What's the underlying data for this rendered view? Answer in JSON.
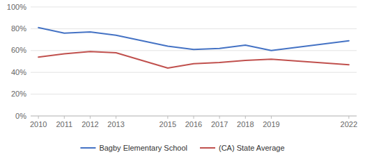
{
  "chart_data": {
    "type": "line",
    "x": [
      2010,
      2011,
      2012,
      2013,
      2015,
      2016,
      2017,
      2018,
      2019,
      2022
    ],
    "series": [
      {
        "name": "Bagby Elementary School",
        "color": "#4472C4",
        "values": [
          0.81,
          0.76,
          0.77,
          0.74,
          0.64,
          0.61,
          0.62,
          0.65,
          0.6,
          0.69
        ]
      },
      {
        "name": "(CA) State Average",
        "color": "#C0504D",
        "values": [
          0.54,
          0.57,
          0.59,
          0.58,
          0.44,
          0.48,
          0.49,
          0.51,
          0.52,
          0.47
        ]
      }
    ],
    "xlim": [
      2009.7,
      2022.3
    ],
    "xticks": [
      2010,
      2011,
      2012,
      2013,
      2015,
      2016,
      2017,
      2018,
      2019,
      2022
    ],
    "ylim": [
      0.0,
      1.0
    ],
    "yticks": [
      {
        "value": 0.0,
        "label": "0%"
      },
      {
        "value": 0.2,
        "label": "20%"
      },
      {
        "value": 0.4,
        "label": "40%"
      },
      {
        "value": 0.6,
        "label": "60%"
      },
      {
        "value": 0.8,
        "label": "80%"
      },
      {
        "value": 1.0,
        "label": "100%"
      }
    ],
    "grid": true,
    "legend": "bottom"
  }
}
